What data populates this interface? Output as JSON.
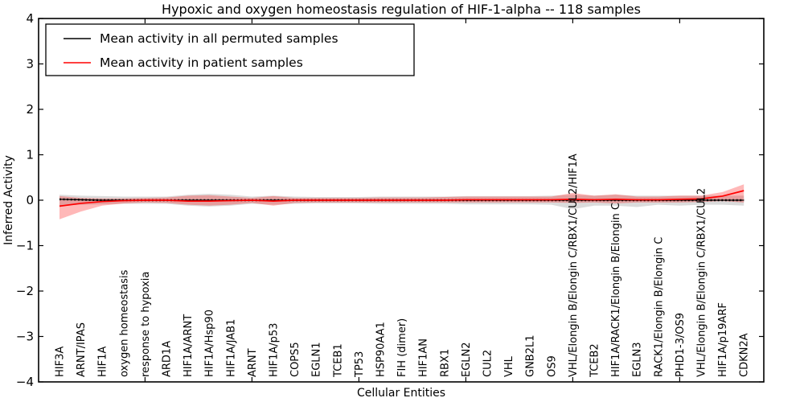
{
  "title": "Hypoxic and oxygen homeostasis regulation of HIF-1-alpha -- 118 samples",
  "axes": {
    "xlabel": "Cellular Entities",
    "ylabel": "Inferred Activity"
  },
  "legend": {
    "entries": [
      {
        "label": "Mean activity in all permuted samples",
        "color": "#000000"
      },
      {
        "label": "Mean activity in patient samples",
        "color": "#ff0000"
      }
    ],
    "position": "upper left"
  },
  "chart_data": {
    "type": "line",
    "title": "Hypoxic and oxygen homeostasis regulation of HIF-1-alpha -- 118 samples",
    "xlabel": "Cellular Entities",
    "ylabel": "Inferred Activity",
    "ylim": [
      -4,
      4
    ],
    "yticks": [
      -4,
      -3,
      -2,
      -1,
      0,
      1,
      2,
      3,
      4
    ],
    "x_major_ticks_at_category_numbers": [
      5,
      10,
      15,
      20,
      25,
      30
    ],
    "grid": false,
    "legend_position": "upper left",
    "categories": [
      "HIF3A",
      "ARNT/IPAS",
      "HIF1A",
      "oxygen homeostasis",
      "response to hypoxia",
      "ARD1A",
      "HIF1A/ARNT",
      "HIF1A/Hsp90",
      "HIF1A/JAB1",
      "ARNT",
      "HIF1A/p53",
      "COPS5",
      "EGLN1",
      "TCEB1",
      "TP53",
      "HSP90AA1",
      "FIH (dimer)",
      "HIF1AN",
      "RBX1",
      "EGLN2",
      "CUL2",
      "VHL",
      "GNB2L1",
      "OS9",
      "VHL/Elongin B/Elongin C/RBX1/CUL2/HIF1A",
      "TCEB2",
      "HIF1A/RACK1/Elongin B/Elongin C",
      "EGLN3",
      "RACK1/Elongin B/Elongin C",
      "PHD1-3/OS9",
      "VHL/Elongin B/Elongin C/RBX1/CUL2",
      "HIF1A/p19ARF",
      "CDKN2A"
    ],
    "series": [
      {
        "name": "Mean activity in all permuted samples",
        "color": "#000000",
        "style": "solid line with dense dot markers",
        "values": [
          0.02,
          0.01,
          0,
          0,
          0,
          0,
          0,
          0,
          0,
          0,
          0,
          0,
          0,
          0,
          0,
          0,
          0,
          0,
          0,
          0,
          0,
          0,
          0,
          0,
          0,
          0,
          0,
          0,
          0,
          0,
          0,
          0,
          0
        ],
        "band": {
          "fill": "#999999",
          "opacity": 0.35,
          "upper": [
            0.12,
            0.1,
            0.09,
            0.08,
            0.08,
            0.08,
            0.12,
            0.14,
            0.12,
            0.08,
            0.1,
            0.08,
            0.07,
            0.07,
            0.07,
            0.08,
            0.08,
            0.08,
            0.08,
            0.09,
            0.09,
            0.09,
            0.09,
            0.1,
            0.12,
            0.1,
            0.12,
            0.1,
            0.1,
            0.1,
            0.1,
            0.1,
            0.1
          ],
          "lower": [
            -0.12,
            -0.1,
            -0.09,
            -0.08,
            -0.08,
            -0.08,
            -0.12,
            -0.14,
            -0.12,
            -0.08,
            -0.1,
            -0.08,
            -0.07,
            -0.07,
            -0.07,
            -0.08,
            -0.08,
            -0.08,
            -0.08,
            -0.09,
            -0.09,
            -0.09,
            -0.09,
            -0.1,
            -0.2,
            -0.12,
            -0.12,
            -0.15,
            -0.1,
            -0.12,
            -0.1,
            -0.1,
            -0.12
          ]
        }
      },
      {
        "name": "Mean activity in patient samples",
        "color": "#ff0000",
        "style": "solid line",
        "values": [
          -0.13,
          -0.07,
          -0.03,
          -0.01,
          0,
          0,
          -0.02,
          -0.02,
          -0.01,
          0,
          -0.02,
          0,
          0,
          0,
          0,
          0,
          0,
          0,
          0,
          0.01,
          0.01,
          0.01,
          0.01,
          0.01,
          0.02,
          0.01,
          0.02,
          0.01,
          0.01,
          0.02,
          0.03,
          0.09,
          0.21
        ],
        "band": {
          "fill": "#ff0000",
          "opacity": 0.28,
          "upper": [
            0.09,
            0.05,
            0.04,
            0.04,
            0.05,
            0.06,
            0.1,
            0.11,
            0.08,
            0.05,
            0.09,
            0.05,
            0.05,
            0.05,
            0.05,
            0.06,
            0.06,
            0.06,
            0.07,
            0.08,
            0.08,
            0.08,
            0.08,
            0.08,
            0.16,
            0.1,
            0.13,
            0.08,
            0.08,
            0.1,
            0.1,
            0.18,
            0.35
          ],
          "lower": [
            -0.42,
            -0.25,
            -0.12,
            -0.07,
            -0.05,
            -0.06,
            -0.1,
            -0.12,
            -0.1,
            -0.06,
            -0.12,
            -0.06,
            -0.05,
            -0.05,
            -0.05,
            -0.05,
            -0.05,
            -0.05,
            -0.05,
            -0.05,
            -0.05,
            -0.05,
            -0.05,
            -0.05,
            -0.06,
            -0.05,
            -0.07,
            -0.05,
            -0.05,
            -0.05,
            -0.04,
            -0.02,
            -0.05
          ]
        }
      }
    ]
  }
}
